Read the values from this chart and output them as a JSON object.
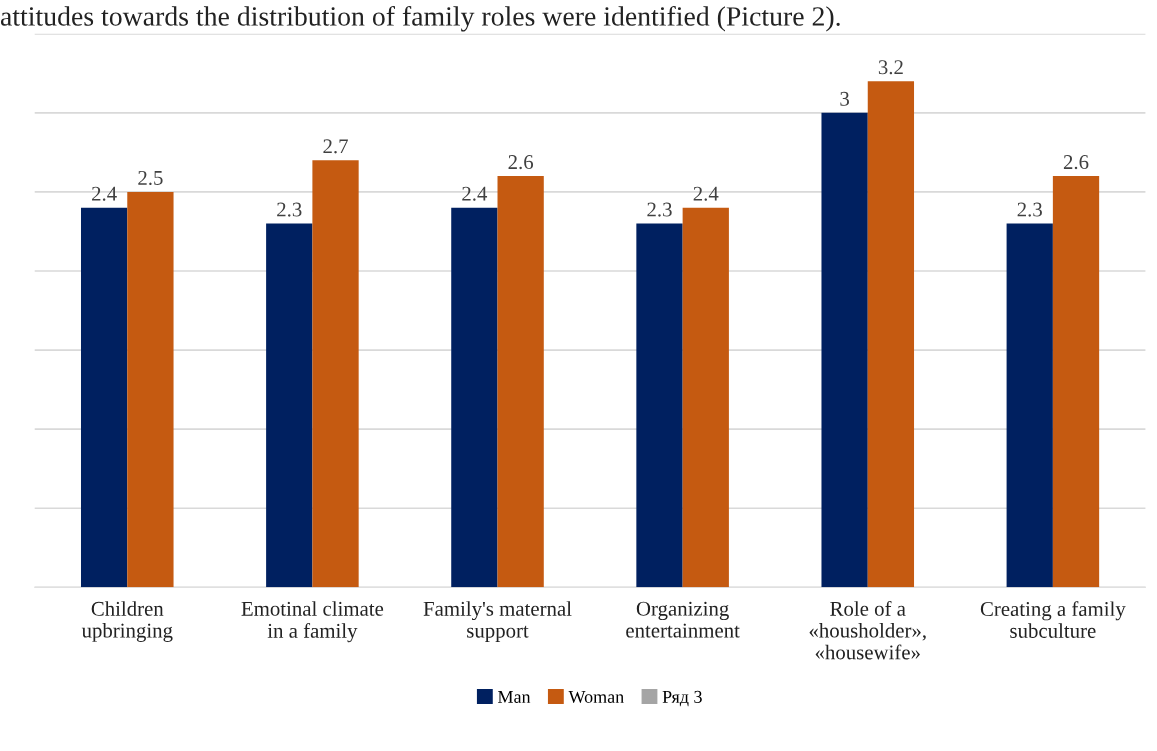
{
  "chart_data": {
    "type": "bar",
    "annotations": [
      "attitudes towards the distribution of family roles were identified (Picture 2)."
    ],
    "categories": [
      "Children\nupbringing",
      "Emotinal climate\nin a family",
      "Family's maternal\nsupport",
      "Organizing\nentertainment",
      "Role of a\n«housholder»,\n«housewife»",
      "Creating a family\nsubculture"
    ],
    "series": [
      {
        "name": "Man",
        "color": "#002060",
        "values": [
          2.4,
          2.3,
          2.4,
          2.3,
          3,
          2.3
        ]
      },
      {
        "name": "Woman",
        "color": "#c55a11",
        "values": [
          2.5,
          2.7,
          2.6,
          2.4,
          3.2,
          2.6
        ]
      },
      {
        "name": "Ряд 3",
        "color": "#a5a5a5",
        "values": [
          null,
          null,
          null,
          null,
          null,
          null
        ]
      }
    ],
    "ylim": [
      0,
      3.5
    ],
    "yticks": [
      {
        "value": 0,
        "label": null
      },
      {
        "value": 0.5,
        "label": null
      },
      {
        "value": 1,
        "label": null
      },
      {
        "value": 1.5,
        "label": null
      },
      {
        "value": 2,
        "label": null
      },
      {
        "value": 2.5,
        "label": null
      },
      {
        "value": 3,
        "label": null
      },
      {
        "value": 3.5,
        "label": null
      }
    ],
    "grid": "y",
    "legend": "bottom",
    "data_labels": true,
    "tick_labels": "x"
  }
}
